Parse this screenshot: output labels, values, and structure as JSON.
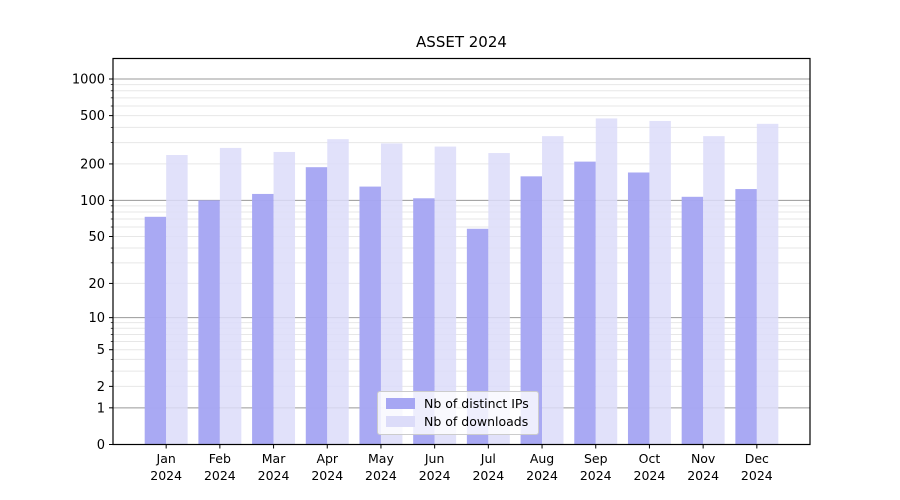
{
  "chart_data": {
    "type": "bar",
    "title": "ASSET 2024",
    "categories": [
      "Jan",
      "Feb",
      "Mar",
      "Apr",
      "May",
      "Jun",
      "Jul",
      "Aug",
      "Sep",
      "Oct",
      "Nov",
      "Dec"
    ],
    "category_year": "2024",
    "series": [
      {
        "name": "Nb of distinct IPs",
        "color": "#a6a6f3",
        "values": [
          73,
          100,
          113,
          188,
          130,
          104,
          58,
          158,
          209,
          170,
          107,
          124
        ]
      },
      {
        "name": "Nb of downloads",
        "color": "#dcdcf9",
        "values": [
          237,
          271,
          251,
          320,
          295,
          278,
          246,
          339,
          474,
          452,
          339,
          428
        ]
      }
    ],
    "y_axis": {
      "scale": "log1p",
      "range": [
        0,
        1475
      ],
      "labeled_ticks": [
        0,
        1,
        2,
        5,
        10,
        20,
        50,
        100,
        200,
        500,
        1000
      ],
      "major_grid_ticks": [
        1,
        10,
        100,
        1000
      ],
      "minor_grid_ticks": [
        2,
        3,
        4,
        5,
        6,
        7,
        8,
        9,
        20,
        30,
        40,
        50,
        60,
        70,
        80,
        90,
        200,
        300,
        400,
        500,
        600,
        700,
        800,
        900
      ]
    },
    "x_axis": {
      "label_line2": "2024"
    },
    "legend": {
      "location": "lower center",
      "entries": [
        "Nb of distinct IPs",
        "Nb of downloads"
      ]
    },
    "colors": {
      "major_grid": "#999999",
      "minor_grid": "#e7e7e7",
      "spine": "#000000",
      "text": "#000000"
    }
  }
}
